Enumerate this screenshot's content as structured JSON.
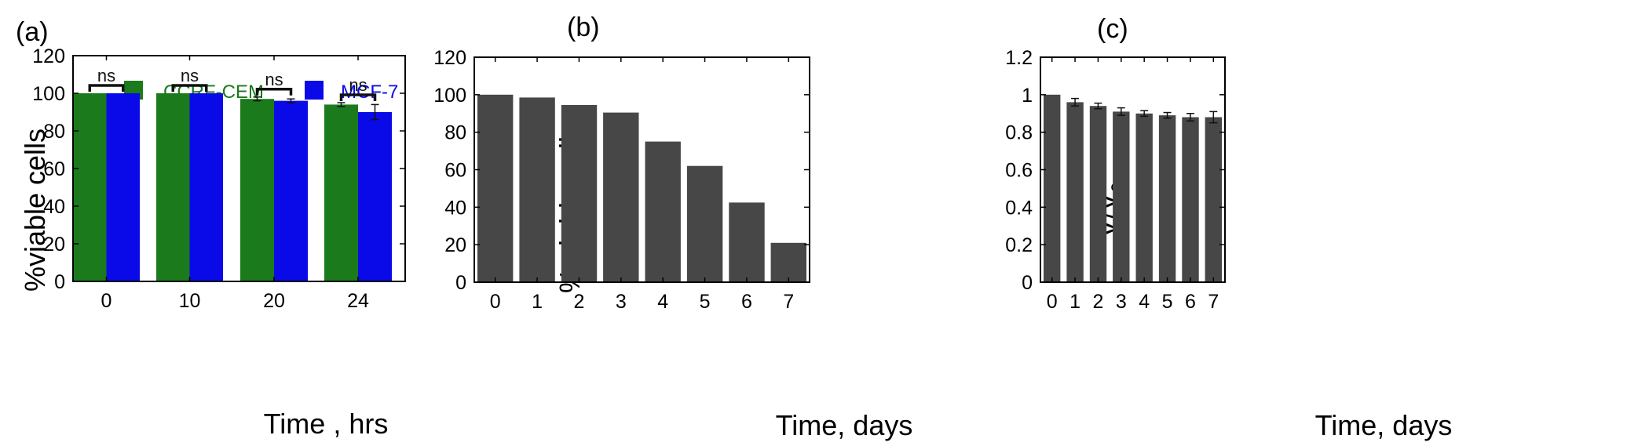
{
  "chart_data": [
    {
      "panel_label": "(a)",
      "type": "bar",
      "categories": [
        "0",
        "10",
        "20",
        "24"
      ],
      "series": [
        {
          "name": "CCRF-CEM",
          "color": "#1b7a1b",
          "values": [
            100,
            100,
            97,
            94
          ],
          "errors": [
            0,
            0,
            1,
            1
          ]
        },
        {
          "name": "MCF-7",
          "color": "#0a0ae8",
          "values": [
            100,
            100,
            96,
            90
          ],
          "errors": [
            0,
            0,
            1,
            4
          ]
        }
      ],
      "significance": [
        "ns",
        "ns",
        "ns",
        "ns"
      ],
      "xlabel": "Time , hrs",
      "ylabel": "%viable cells",
      "ylim": [
        0,
        120
      ],
      "yticks": [
        0,
        20,
        40,
        60,
        80,
        100,
        120
      ],
      "legend_position": "top"
    },
    {
      "panel_label": "(b)",
      "type": "bar",
      "categories": [
        "0",
        "1",
        "2",
        "3",
        "4",
        "5",
        "6",
        "7"
      ],
      "series": [
        {
          "color": "#474747",
          "values": [
            100,
            98.5,
            94.5,
            90.5,
            75,
            62,
            42.5,
            21
          ]
        }
      ],
      "xlabel": "Time, days",
      "ylabel": "% viable cells",
      "ylim": [
        0,
        120
      ],
      "yticks": [
        0,
        20,
        40,
        60,
        80,
        100,
        120
      ]
    },
    {
      "panel_label": "(c)",
      "type": "bar",
      "categories": [
        "0",
        "1",
        "2",
        "3",
        "4",
        "5",
        "6",
        "7"
      ],
      "series": [
        {
          "color": "#474747",
          "values": [
            1.0,
            0.96,
            0.94,
            0.91,
            0.9,
            0.89,
            0.88,
            0.88
          ],
          "errors": [
            0,
            0.02,
            0.015,
            0.02,
            0.015,
            0.015,
            0.02,
            0.03
          ]
        }
      ],
      "xlabel": "Time, days",
      "ylabel": "V/V",
      "ylabel_subscript": "0",
      "ylim": [
        0,
        1.2
      ],
      "yticks": [
        "0",
        "0.2",
        "0.4",
        "0.6",
        "0.8",
        "1",
        "1.2"
      ]
    }
  ]
}
